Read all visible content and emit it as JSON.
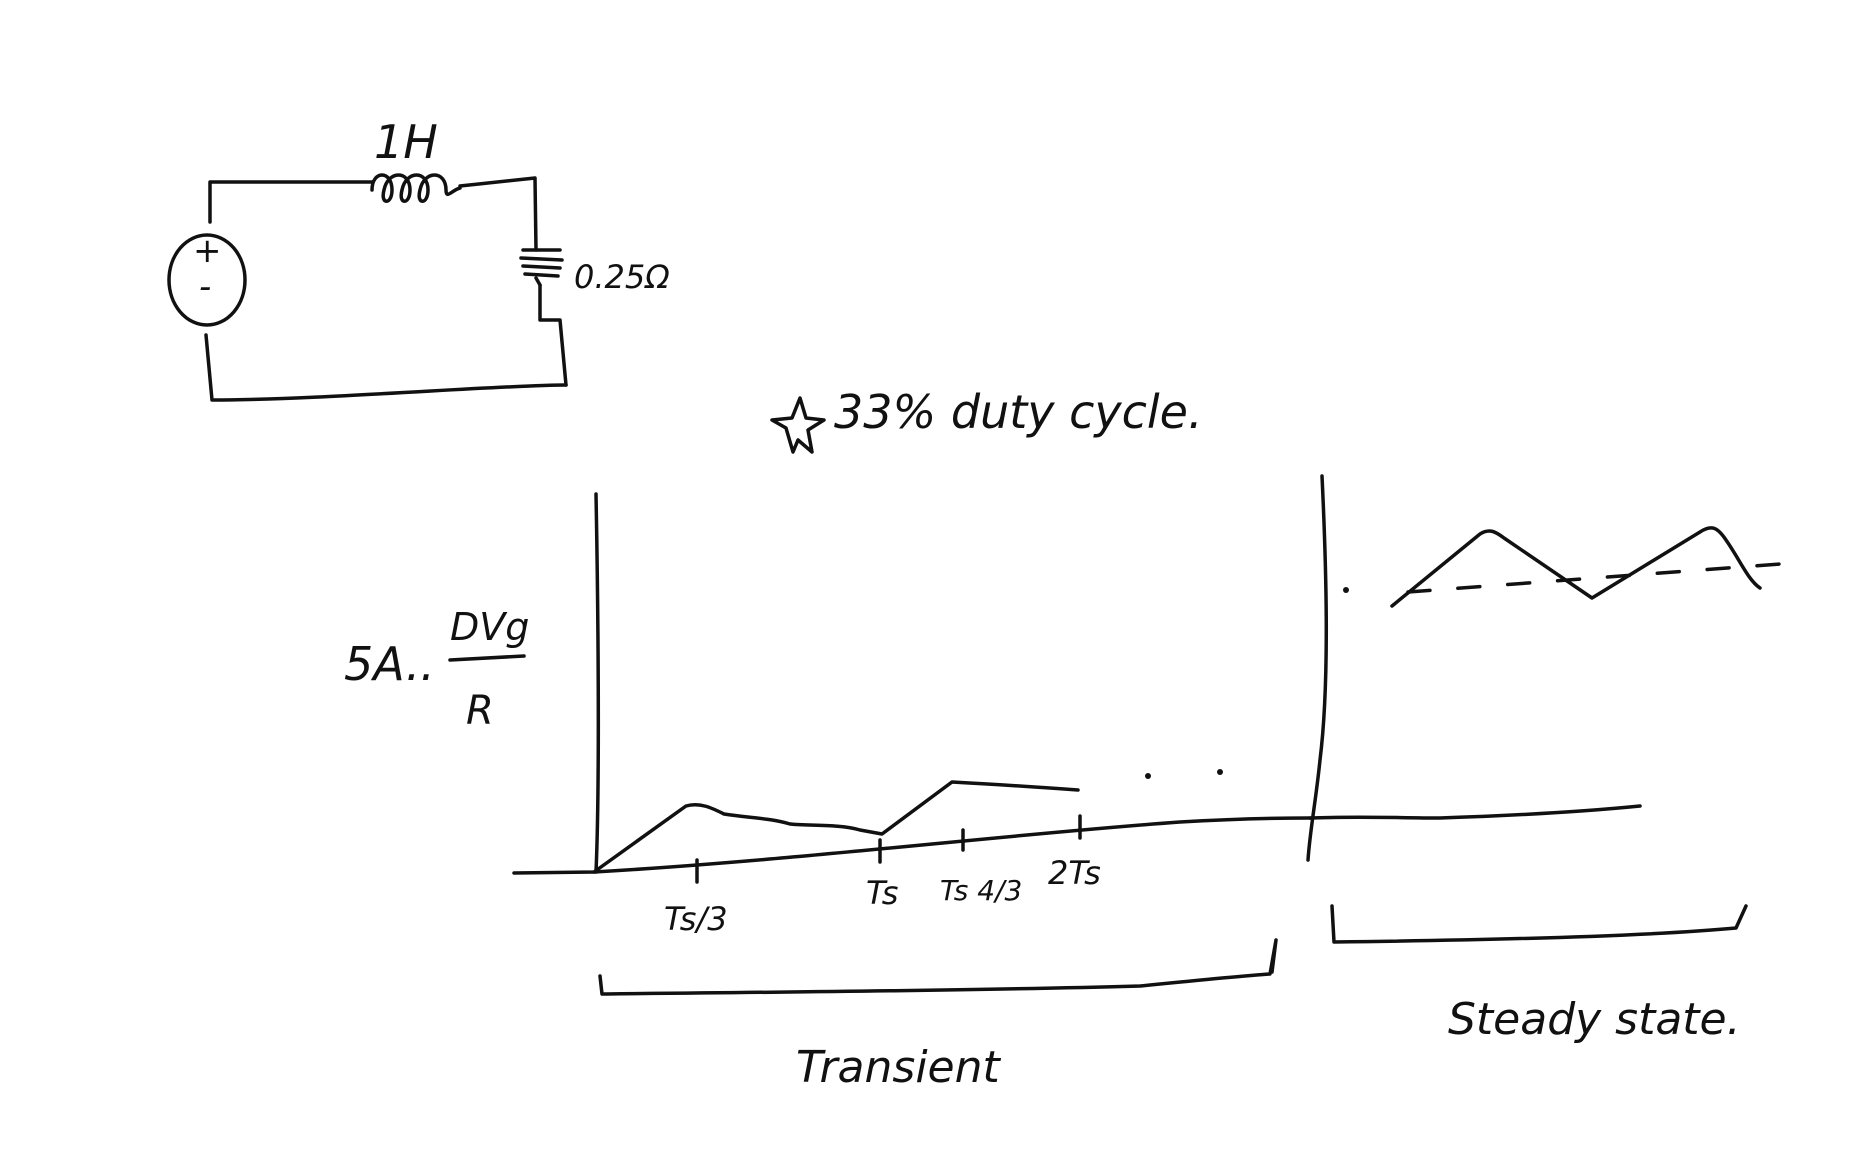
{
  "circuit": {
    "inductor_label": "1H",
    "resistor_label": "0.25Ω",
    "source_plus": "+",
    "source_minus": "-"
  },
  "note": "33% duty cycle.",
  "y_label": {
    "prefix": "5A..",
    "numerator": "DVg",
    "denominator": "R"
  },
  "x_ticks": [
    "Ts/3",
    "Ts",
    "Ts 4/3",
    "2Ts"
  ],
  "regions": {
    "transient": "Transient",
    "steady_state": "Steady state."
  },
  "ellipsis": ". . .",
  "colors": {
    "ink": "#111111",
    "background": "#ffffff"
  }
}
